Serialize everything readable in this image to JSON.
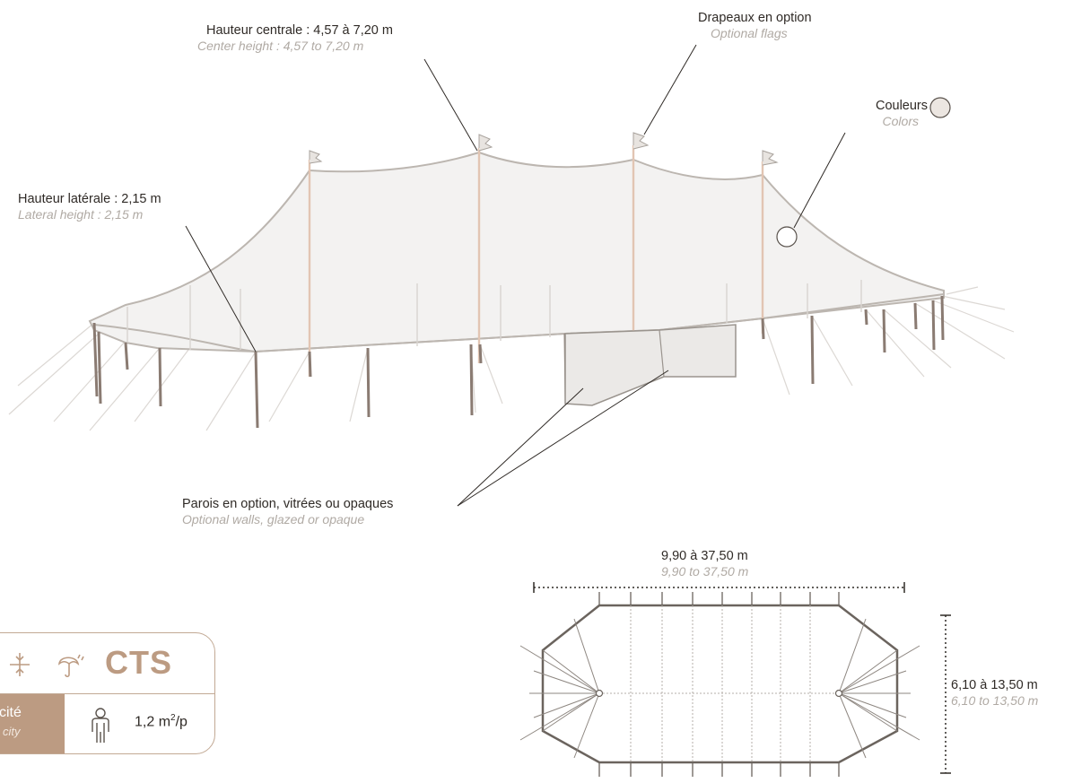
{
  "labels": {
    "center_height": {
      "fr": "Hauteur centrale : 4,57 à 7,20 m",
      "en": "Center height : 4,57 to 7,20 m"
    },
    "flags": {
      "fr": "Drapeaux en option",
      "en": "Optional flags"
    },
    "colors": {
      "fr": "Couleurs",
      "en": "Colors"
    },
    "lateral_height": {
      "fr": "Hauteur latérale : 2,15 m",
      "en": "Lateral height : 2,15 m"
    },
    "walls": {
      "fr": "Parois en option, vitrées ou opaques",
      "en": "Optional walls, glazed or opaque"
    },
    "length": {
      "fr": "9,90 à 37,50 m",
      "en": "9,90 to 37,50 m"
    },
    "width": {
      "fr": "6,10 à 13,50 m",
      "en": "6,10 to 13,50 m"
    }
  },
  "spec_card": {
    "code": "CTS",
    "capacity_fr": "cité",
    "capacity_en": "city",
    "ratio_value": "1,2 m",
    "ratio_exp": "2",
    "ratio_unit": "/p"
  },
  "colors": {
    "accent": "#bc9b82",
    "swatch": "#ece6e1",
    "line": "#b9b3ad"
  }
}
